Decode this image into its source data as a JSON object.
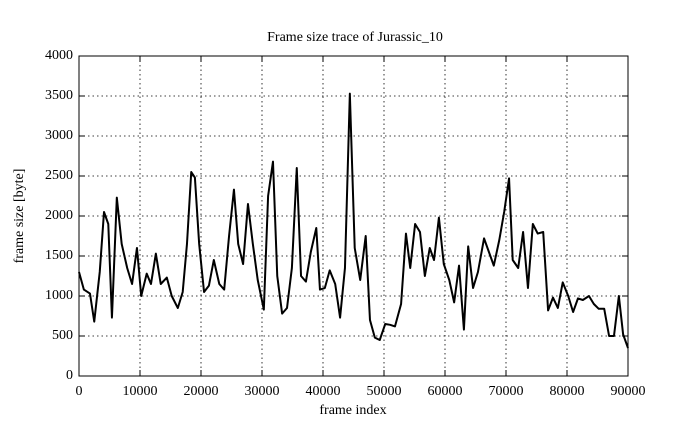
{
  "chart_data": {
    "type": "line",
    "title": "Frame size trace of Jurassic_10",
    "x_label": "frame index",
    "y_label": "frame size [byte]",
    "x": [
      0,
      800,
      1800,
      2500,
      3400,
      4100,
      4800,
      5400,
      6200,
      7000,
      7900,
      8700,
      9500,
      10200,
      11100,
      11800,
      12600,
      13400,
      14400,
      15200,
      16200,
      17000,
      17700,
      18400,
      19000,
      19700,
      20500,
      21300,
      22100,
      23000,
      23800,
      24600,
      25400,
      26100,
      26900,
      27700,
      28500,
      29300,
      30300,
      31000,
      31800,
      32500,
      33300,
      34100,
      34900,
      35700,
      36400,
      37200,
      38000,
      38900,
      39500,
      40300,
      41100,
      42000,
      42800,
      43600,
      44400,
      45200,
      46100,
      47000,
      47700,
      48500,
      49300,
      50200,
      51000,
      51800,
      52800,
      53600,
      54300,
      55100,
      55900,
      56700,
      57500,
      58200,
      59000,
      59800,
      60700,
      61500,
      62300,
      63100,
      63800,
      64600,
      65400,
      66400,
      67200,
      68000,
      68900,
      69700,
      70500,
      71100,
      72000,
      72800,
      73600,
      74400,
      75200,
      76100,
      76900,
      77700,
      78500,
      79300,
      80200,
      81000,
      81800,
      82600,
      83600,
      84400,
      85200,
      86100,
      86900,
      87700,
      88500,
      89200,
      90000
    ],
    "series": [
      {
        "name": "frame size",
        "color": "#000000",
        "values": [
          1300,
          1080,
          1030,
          680,
          1300,
          2050,
          1900,
          730,
          2230,
          1650,
          1350,
          1150,
          1600,
          1000,
          1280,
          1150,
          1530,
          1150,
          1230,
          1000,
          850,
          1050,
          1650,
          2550,
          2480,
          1650,
          1050,
          1130,
          1450,
          1150,
          1080,
          1750,
          2330,
          1650,
          1400,
          2150,
          1650,
          1200,
          830,
          2250,
          2680,
          1250,
          780,
          850,
          1350,
          2600,
          1250,
          1180,
          1550,
          1850,
          1080,
          1100,
          1320,
          1150,
          730,
          1350,
          3530,
          1600,
          1200,
          1750,
          700,
          480,
          450,
          650,
          640,
          620,
          900,
          1780,
          1350,
          1900,
          1800,
          1250,
          1600,
          1450,
          1980,
          1400,
          1200,
          920,
          1380,
          580,
          1620,
          1100,
          1300,
          1720,
          1550,
          1380,
          1700,
          2050,
          2470,
          1450,
          1350,
          1800,
          1100,
          1900,
          1780,
          1800,
          820,
          980,
          850,
          1170,
          1000,
          800,
          970,
          950,
          1000,
          900,
          840,
          840,
          500,
          500,
          1000,
          520,
          350
        ]
      }
    ],
    "xlim": [
      0,
      90000
    ],
    "xticks": [
      0,
      10000,
      20000,
      30000,
      40000,
      50000,
      60000,
      70000,
      80000,
      90000
    ],
    "ylim": [
      0,
      4000
    ],
    "yticks": [
      0,
      500,
      1000,
      1500,
      2000,
      2500,
      3000,
      3500,
      4000
    ],
    "grid": true
  }
}
